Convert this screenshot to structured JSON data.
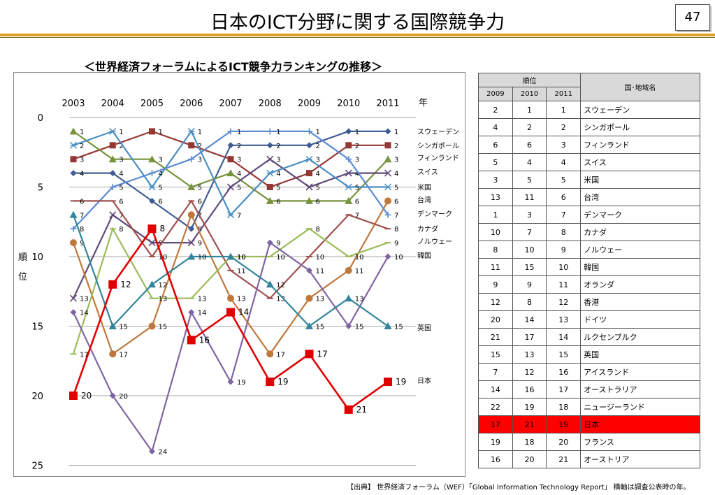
{
  "header": {
    "title": "日本のICT分野に関する国際競争力",
    "page_number": "47"
  },
  "chart_data": {
    "type": "line",
    "title": "＜世界経済フォーラムによるICT競争力ランキングの推移＞",
    "x": [
      "2003",
      "2004",
      "2005",
      "2006",
      "2007",
      "2008",
      "2009",
      "2010",
      "2011"
    ],
    "x_unit": "年",
    "ylabel_chars": [
      "順",
      "位"
    ],
    "ylim": [
      0,
      25
    ],
    "y_ticks": [
      0,
      5,
      10,
      15,
      20,
      25
    ],
    "y_inverted": true,
    "grid": true,
    "series": [
      {
        "name": "スウェーデン",
        "color": "#3f5d93",
        "marker": "diamond",
        "values": [
          4,
          4,
          6,
          8,
          2,
          2,
          2,
          1,
          1
        ]
      },
      {
        "name": "シンガポール",
        "color": "#953834",
        "marker": "square",
        "values": [
          3,
          2,
          1,
          2,
          3,
          5,
          4,
          2,
          2
        ]
      },
      {
        "name": "フィンランド",
        "color": "#77933c",
        "marker": "triangle",
        "values": [
          1,
          3,
          3,
          5,
          4,
          6,
          6,
          6,
          3
        ]
      },
      {
        "name": "スイス",
        "color": "#60497a",
        "marker": "x",
        "values": [
          13,
          7,
          9,
          9,
          5,
          3,
          5,
          4,
          4
        ]
      },
      {
        "name": "米国",
        "color": "#4a8ec2",
        "marker": "star",
        "values": [
          2,
          1,
          5,
          1,
          7,
          4,
          3,
          5,
          5
        ]
      },
      {
        "name": "台湾",
        "color": "#c0783a",
        "marker": "circle",
        "values": [
          9,
          17,
          15,
          7,
          13,
          17,
          13,
          11,
          6
        ]
      },
      {
        "name": "デンマーク",
        "color": "#5b8bd0",
        "marker": "plus",
        "values": [
          8,
          5,
          4,
          3,
          1,
          1,
          1,
          3,
          7
        ]
      },
      {
        "name": "カナダ",
        "color": "#a0504c",
        "marker": "dash",
        "values": [
          6,
          6,
          10,
          6,
          11,
          13,
          10,
          7,
          8
        ]
      },
      {
        "name": "ノルウェー",
        "color": "#9bbb59",
        "marker": "dash",
        "values": [
          17,
          8,
          13,
          13,
          10,
          10,
          8,
          10,
          9
        ]
      },
      {
        "name": "韓国",
        "color": "#8064a2",
        "marker": "diamond",
        "values": [
          14,
          20,
          24,
          14,
          19,
          9,
          11,
          15,
          10
        ]
      },
      {
        "name": "英国",
        "color": "#31859c",
        "marker": "triangle",
        "values": [
          7,
          15,
          12,
          10,
          10,
          12,
          15,
          13,
          15
        ]
      },
      {
        "name": "日本",
        "color": "#e00000",
        "marker": "square",
        "values": [
          20,
          12,
          8,
          16,
          14,
          19,
          17,
          21,
          19
        ]
      }
    ]
  },
  "table": {
    "rank_header": "順位",
    "year_headers": [
      "2009",
      "2010",
      "2011"
    ],
    "name_header": "国･地域名",
    "rows": [
      {
        "r2009": "2",
        "r2010": "1",
        "r2011": "1",
        "name": "スウェーデン"
      },
      {
        "r2009": "4",
        "r2010": "2",
        "r2011": "2",
        "name": "シンガポール"
      },
      {
        "r2009": "6",
        "r2010": "6",
        "r2011": "3",
        "name": "フィンランド"
      },
      {
        "r2009": "5",
        "r2010": "4",
        "r2011": "4",
        "name": "スイス"
      },
      {
        "r2009": "3",
        "r2010": "5",
        "r2011": "5",
        "name": "米国"
      },
      {
        "r2009": "13",
        "r2010": "11",
        "r2011": "6",
        "name": "台湾"
      },
      {
        "r2009": "1",
        "r2010": "3",
        "r2011": "7",
        "name": "デンマーク"
      },
      {
        "r2009": "10",
        "r2010": "7",
        "r2011": "8",
        "name": "カナダ"
      },
      {
        "r2009": "8",
        "r2010": "10",
        "r2011": "9",
        "name": "ノルウェー"
      },
      {
        "r2009": "11",
        "r2010": "15",
        "r2011": "10",
        "name": "韓国"
      },
      {
        "r2009": "9",
        "r2010": "9",
        "r2011": "11",
        "name": "オランダ"
      },
      {
        "r2009": "12",
        "r2010": "8",
        "r2011": "12",
        "name": "香港"
      },
      {
        "r2009": "20",
        "r2010": "14",
        "r2011": "13",
        "name": "ドイツ"
      },
      {
        "r2009": "21",
        "r2010": "17",
        "r2011": "14",
        "name": "ルクセンブルク"
      },
      {
        "r2009": "15",
        "r2010": "13",
        "r2011": "15",
        "name": "英国"
      },
      {
        "r2009": "7",
        "r2010": "12",
        "r2011": "16",
        "name": "アイスランド"
      },
      {
        "r2009": "14",
        "r2010": "16",
        "r2011": "17",
        "name": "オーストラリア"
      },
      {
        "r2009": "22",
        "r2010": "19",
        "r2011": "18",
        "name": "ニュージーランド"
      },
      {
        "r2009": "17",
        "r2010": "21",
        "r2011": "19",
        "name": "日本",
        "highlight": true
      },
      {
        "r2009": "19",
        "r2010": "18",
        "r2011": "20",
        "name": "フランス"
      },
      {
        "r2009": "16",
        "r2010": "20",
        "r2011": "21",
        "name": "オーストリア"
      }
    ]
  },
  "source": "【出典】 世界経済フォーラム（WEF）「Global Information Technology Report」 横軸は調査公表時の年。"
}
